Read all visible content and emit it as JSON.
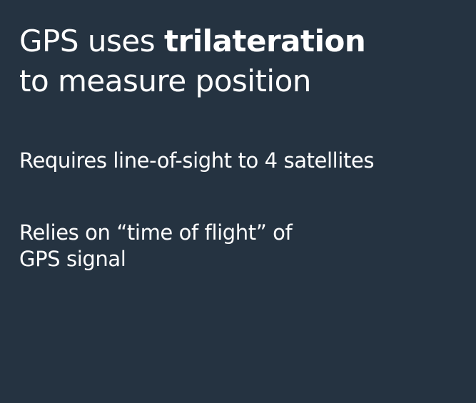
{
  "slide": {
    "title": {
      "prefix": "GPS uses ",
      "emphasis": "trilateration",
      "line2": "to measure position"
    },
    "points": [
      {
        "text": "Requires line-of-sight to 4 satellites"
      },
      {
        "line1": "Relies on “time of flight” of",
        "line2": "GPS signal"
      }
    ]
  }
}
